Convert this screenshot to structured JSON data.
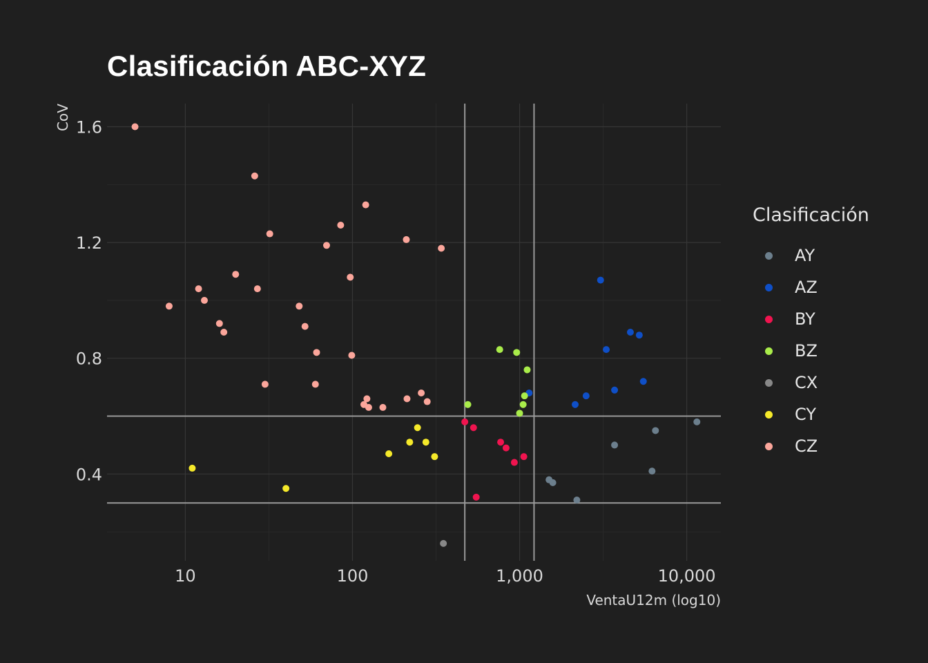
{
  "chart_data": {
    "type": "scatter",
    "title": "Clasificación ABC-XYZ",
    "xlabel": "VentaU12m (log10)",
    "ylabel": "CoV",
    "x_scale": "log10",
    "xlim": [
      3.4,
      16000
    ],
    "ylim": [
      0.1,
      1.68
    ],
    "x_ticks": [
      10,
      100,
      1000,
      10000
    ],
    "x_tick_labels": [
      "10",
      "100",
      "1,000",
      "10,000"
    ],
    "y_ticks": [
      0.4,
      0.8,
      1.2,
      1.6
    ],
    "y_tick_labels": [
      "0.4",
      "0.8",
      "1.2",
      "1.6"
    ],
    "grid": true,
    "reference_lines": {
      "x": [
        470,
        1220
      ],
      "y": [
        0.3,
        0.6
      ]
    },
    "legend_title": "Clasificación",
    "legend_position": "right",
    "series": [
      {
        "name": "AY",
        "color": "#6c7f8d",
        "points": [
          [
            1500,
            0.38
          ],
          [
            1580,
            0.37
          ],
          [
            2200,
            0.31
          ],
          [
            3700,
            0.5
          ],
          [
            6200,
            0.41
          ],
          [
            6500,
            0.55
          ],
          [
            11500,
            0.58
          ]
        ]
      },
      {
        "name": "AZ",
        "color": "#0f4fc7",
        "points": [
          [
            1140,
            0.68
          ],
          [
            2150,
            0.64
          ],
          [
            2500,
            0.67
          ],
          [
            3050,
            1.07
          ],
          [
            3300,
            0.83
          ],
          [
            3700,
            0.69
          ],
          [
            4600,
            0.89
          ],
          [
            5200,
            0.88
          ],
          [
            5500,
            0.72
          ]
        ]
      },
      {
        "name": "BY",
        "color": "#f0144f",
        "points": [
          [
            470,
            0.58
          ],
          [
            530,
            0.56
          ],
          [
            550,
            0.32
          ],
          [
            770,
            0.51
          ],
          [
            830,
            0.49
          ],
          [
            930,
            0.44
          ],
          [
            1060,
            0.46
          ]
        ]
      },
      {
        "name": "BZ",
        "color": "#a9ec4a",
        "points": [
          [
            490,
            0.64
          ],
          [
            760,
            0.83
          ],
          [
            960,
            0.82
          ],
          [
            1000,
            0.61
          ],
          [
            1050,
            0.64
          ],
          [
            1070,
            0.67
          ],
          [
            1110,
            0.76
          ]
        ]
      },
      {
        "name": "CX",
        "color": "#888888",
        "points": [
          [
            350,
            0.16
          ]
        ]
      },
      {
        "name": "CY",
        "color": "#f5e92a",
        "points": [
          [
            11,
            0.42
          ],
          [
            40,
            0.35
          ],
          [
            165,
            0.47
          ],
          [
            220,
            0.51
          ],
          [
            245,
            0.56
          ],
          [
            275,
            0.51
          ],
          [
            310,
            0.46
          ]
        ]
      },
      {
        "name": "CZ",
        "color": "#fba69b",
        "points": [
          [
            5,
            1.6
          ],
          [
            8,
            0.98
          ],
          [
            12,
            1.04
          ],
          [
            13,
            1.0
          ],
          [
            16,
            0.92
          ],
          [
            17,
            0.89
          ],
          [
            20,
            1.09
          ],
          [
            26,
            1.43
          ],
          [
            27,
            1.04
          ],
          [
            30,
            0.71
          ],
          [
            32,
            1.23
          ],
          [
            48,
            0.98
          ],
          [
            52,
            0.91
          ],
          [
            60,
            0.71
          ],
          [
            61,
            0.82
          ],
          [
            70,
            1.19
          ],
          [
            85,
            1.26
          ],
          [
            97,
            1.08
          ],
          [
            99,
            0.81
          ],
          [
            117,
            0.64
          ],
          [
            120,
            1.33
          ],
          [
            122,
            0.66
          ],
          [
            125,
            0.63
          ],
          [
            152,
            0.63
          ],
          [
            210,
            1.21
          ],
          [
            212,
            0.66
          ],
          [
            258,
            0.68
          ],
          [
            280,
            0.65
          ],
          [
            340,
            1.18
          ]
        ]
      }
    ]
  }
}
